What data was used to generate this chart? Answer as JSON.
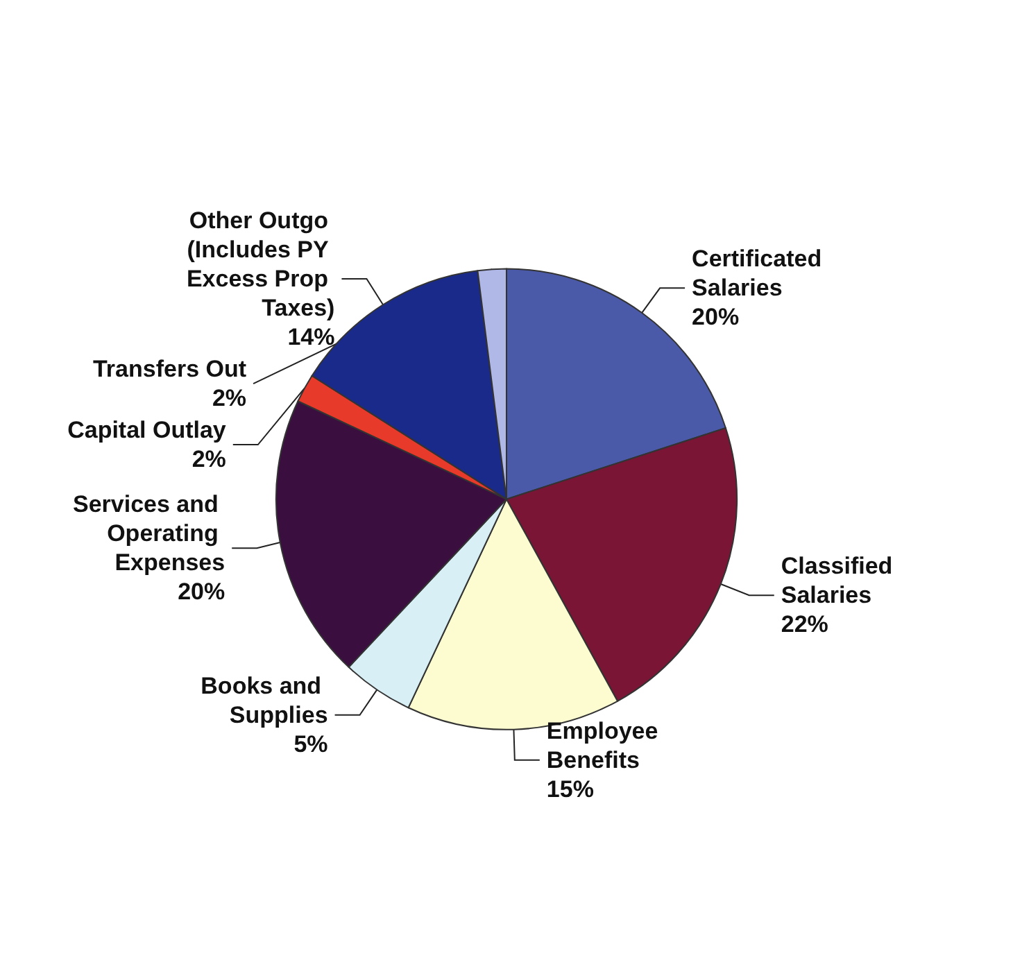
{
  "chart_data": {
    "type": "pie",
    "categories": [
      "Certificated Salaries",
      "Classified Salaries",
      "Employee Benefits",
      "Books and Supplies",
      "Services and Operating Expenses",
      "Capital Outlay",
      "Other Outgo (Includes PY Excess Prop Taxes)",
      "Transfers Out"
    ],
    "values": [
      20,
      22,
      15,
      5,
      20,
      2,
      14,
      2
    ],
    "colors": [
      "#4a5aa8",
      "#7a1535",
      "#fdfcd0",
      "#d8f0f5",
      "#3a0f40",
      "#e83a2a",
      "#1a2a8a",
      "#b0b8e8"
    ],
    "value_labels": [
      "20%",
      "22%",
      "15%",
      "5%",
      "20%",
      "2%",
      "14%",
      "2%"
    ]
  }
}
